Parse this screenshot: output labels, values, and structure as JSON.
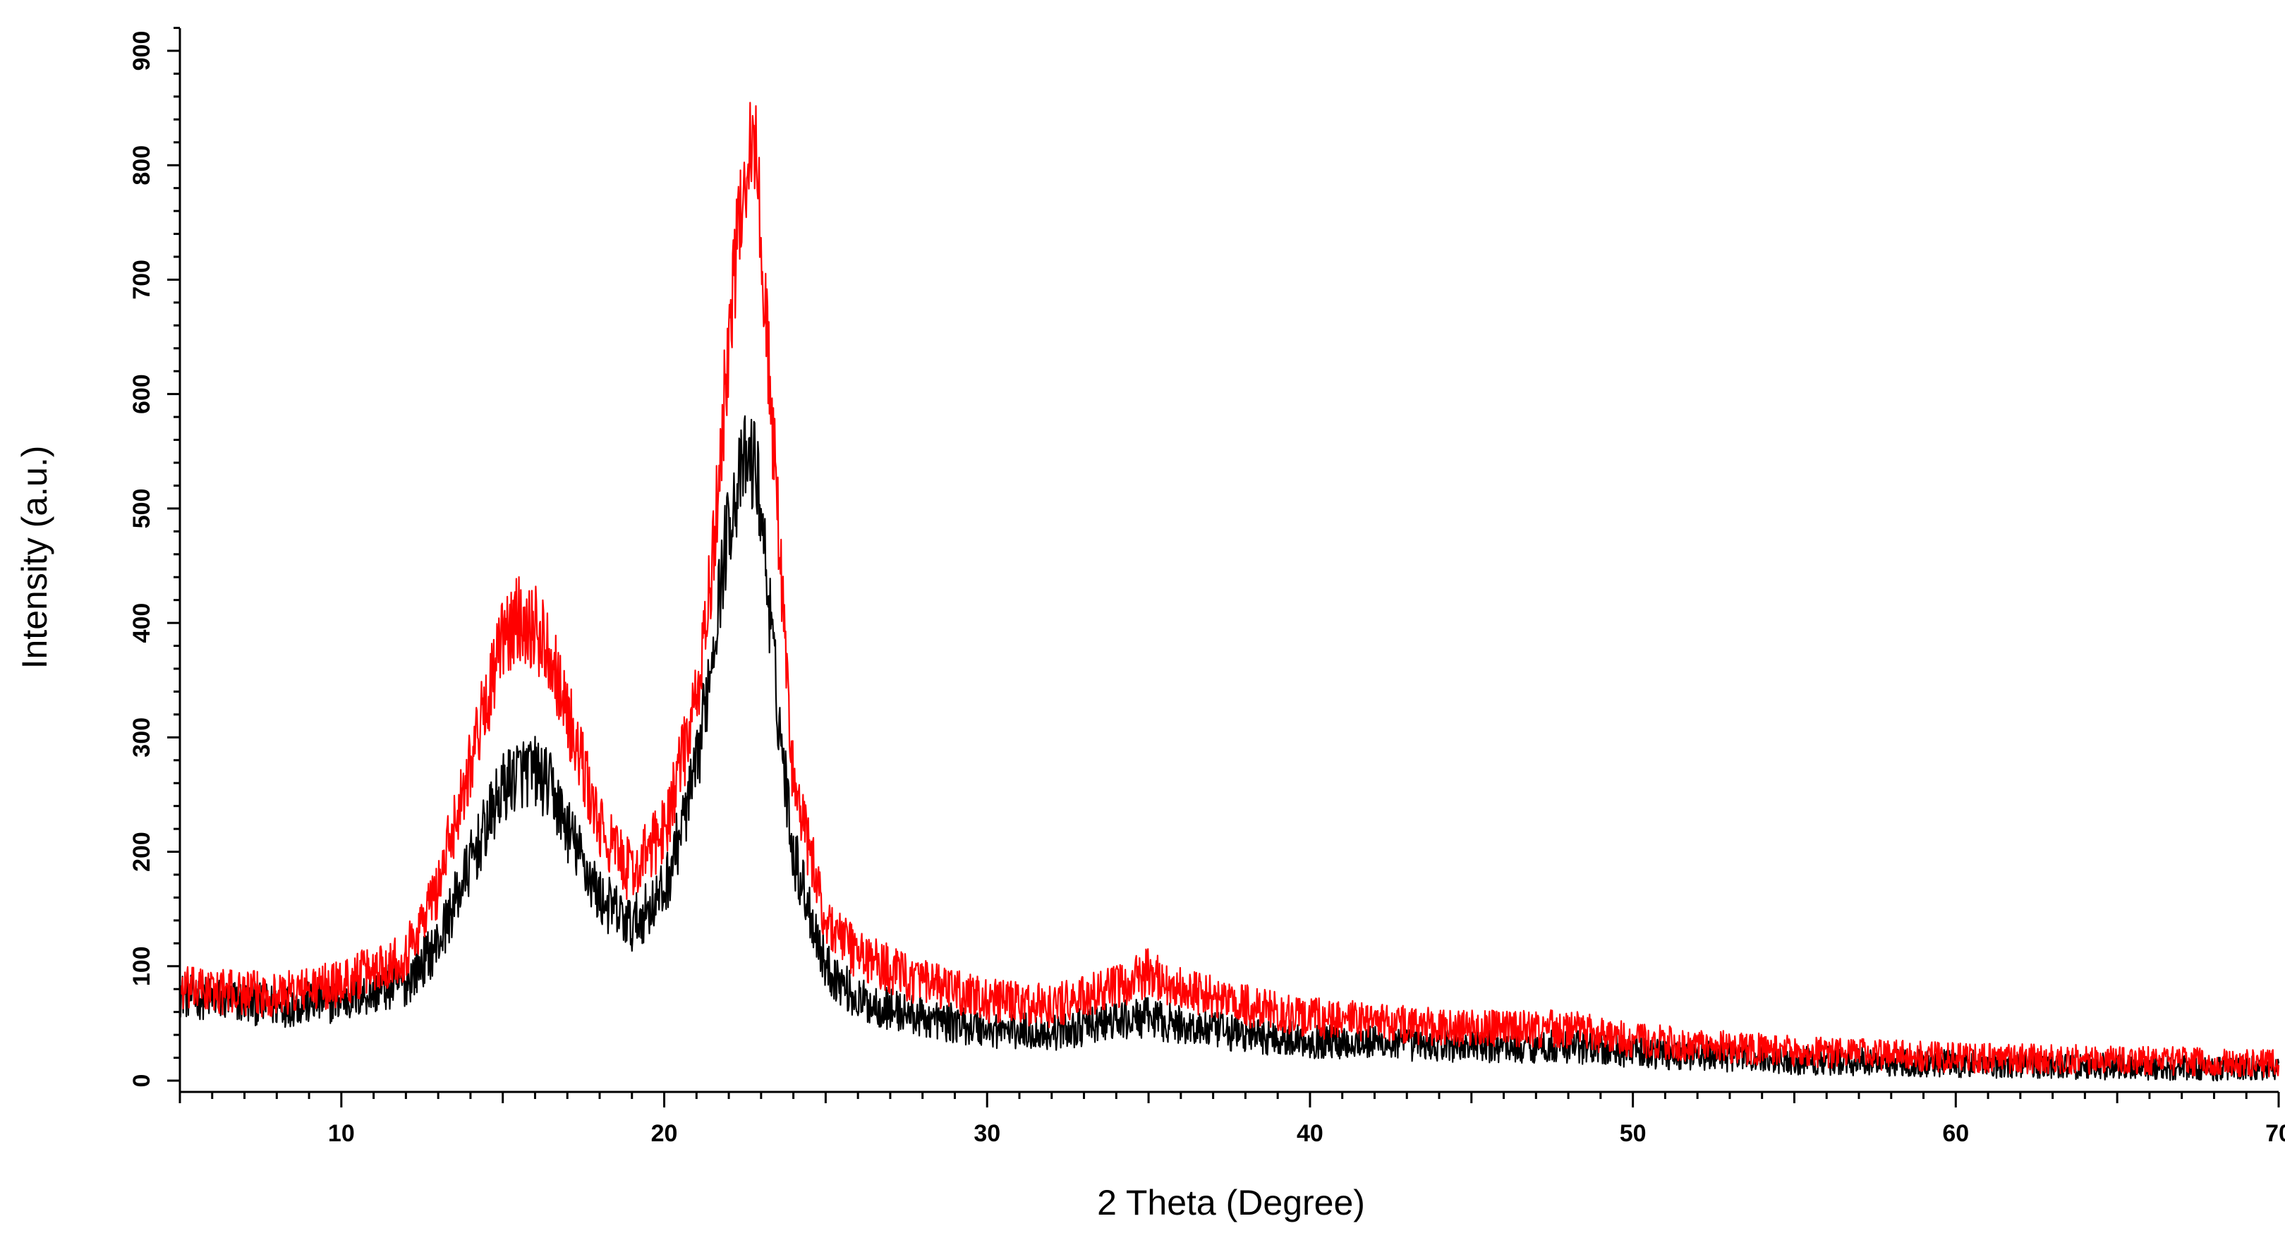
{
  "chart_data": {
    "type": "line",
    "title": "",
    "xlabel": "2 Theta (Degree)",
    "ylabel": "Intensity (a.u.)",
    "xlim": [
      5,
      70
    ],
    "ylim": [
      0,
      920
    ],
    "x_ticks": [
      10,
      20,
      30,
      40,
      50,
      60,
      70
    ],
    "x_tick_labels": [
      "10",
      "20",
      "30",
      "40",
      "50",
      "60",
      "70"
    ],
    "y_ticks": [
      0,
      100,
      200,
      300,
      400,
      500,
      600,
      700,
      800,
      900
    ],
    "y_tick_labels": [
      "0",
      "100",
      "200",
      "300",
      "400",
      "500",
      "600",
      "700",
      "800",
      "900"
    ],
    "grid": false,
    "series": [
      {
        "name": "black",
        "color": "#000000",
        "x": [
          5,
          8,
          10,
          12,
          13,
          14,
          15,
          15.5,
          16,
          16.5,
          17,
          18,
          19,
          20,
          21,
          21.5,
          22,
          22.5,
          22.8,
          23,
          23.5,
          24,
          25,
          26,
          28,
          30,
          32,
          34,
          35,
          36,
          38,
          40,
          45,
          48,
          50,
          55,
          60,
          65,
          70
        ],
        "values": [
          75,
          65,
          70,
          85,
          120,
          190,
          255,
          270,
          270,
          255,
          220,
          160,
          135,
          165,
          270,
          380,
          490,
          540,
          540,
          500,
          330,
          200,
          100,
          70,
          55,
          45,
          42,
          52,
          55,
          48,
          40,
          35,
          30,
          30,
          25,
          18,
          15,
          12,
          10
        ]
      },
      {
        "name": "red",
        "color": "#ff0000",
        "x": [
          5,
          8,
          10,
          12,
          13,
          14,
          15,
          15.5,
          16,
          16.5,
          17,
          18,
          19,
          20,
          21,
          21.5,
          22,
          22.5,
          22.8,
          23,
          23.5,
          24,
          25,
          26,
          28,
          30,
          32,
          34,
          35,
          36,
          38,
          40,
          45,
          48,
          50,
          55,
          60,
          65,
          70
        ],
        "values": [
          80,
          75,
          85,
          110,
          170,
          280,
          385,
          405,
          395,
          375,
          320,
          220,
          180,
          220,
          330,
          450,
          650,
          800,
          820,
          740,
          500,
          260,
          140,
          110,
          85,
          70,
          65,
          80,
          95,
          80,
          65,
          55,
          45,
          45,
          35,
          25,
          20,
          18,
          15
        ]
      }
    ]
  }
}
